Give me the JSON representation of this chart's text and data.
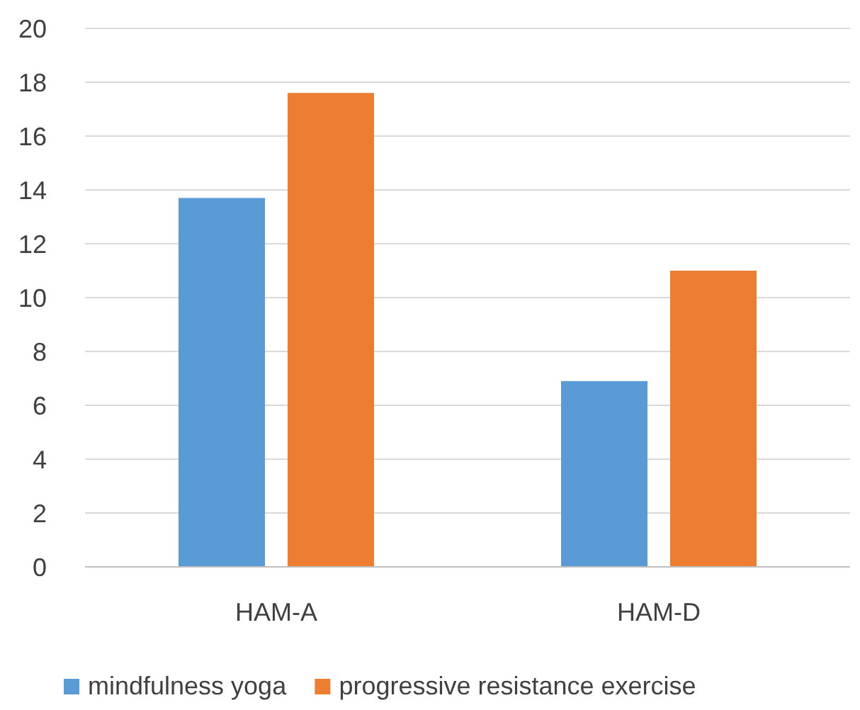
{
  "chart_data": {
    "type": "bar",
    "categories": [
      "HAM-A",
      "HAM-D"
    ],
    "series": [
      {
        "name": "mindfulness yoga",
        "color": "#5b9bd5",
        "values": [
          13.7,
          6.9
        ]
      },
      {
        "name": "progressive resistance exercise",
        "color": "#ed7d31",
        "values": [
          17.6,
          11.0
        ]
      }
    ],
    "ylim": [
      0,
      20
    ],
    "yticks": [
      0,
      2,
      4,
      6,
      8,
      10,
      12,
      14,
      16,
      18,
      20
    ],
    "grid": "y",
    "legend": "bottom"
  }
}
